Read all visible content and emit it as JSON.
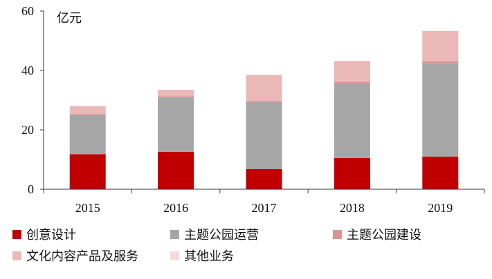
{
  "chart_data": {
    "type": "bar",
    "stacked": true,
    "unit_label": "亿元",
    "categories": [
      "2015",
      "2016",
      "2017",
      "2018",
      "2019"
    ],
    "ylim": [
      0,
      60
    ],
    "yticks": [
      0,
      20,
      40,
      60
    ],
    "grid": false,
    "legend_position": "bottom",
    "series": [
      {
        "name": "创意设计",
        "color": "#c00000",
        "values": [
          11.8,
          12.6,
          6.8,
          10.5,
          11.0
        ]
      },
      {
        "name": "主题公园运营",
        "color": "#a6a6a6",
        "values": [
          13.2,
          18.4,
          22.5,
          25.3,
          31.5
        ]
      },
      {
        "name": "主题公园建设",
        "color": "#d99594",
        "values": [
          0.3,
          0.3,
          0.4,
          0.4,
          0.6
        ]
      },
      {
        "name": "文化内容产品及服务",
        "color": "#eab8b7",
        "values": [
          2.7,
          2.2,
          8.8,
          7.0,
          10.2
        ]
      },
      {
        "name": "其他业务",
        "color": "#f3dcdc",
        "values": [
          0,
          0,
          0,
          0,
          0
        ]
      }
    ]
  }
}
